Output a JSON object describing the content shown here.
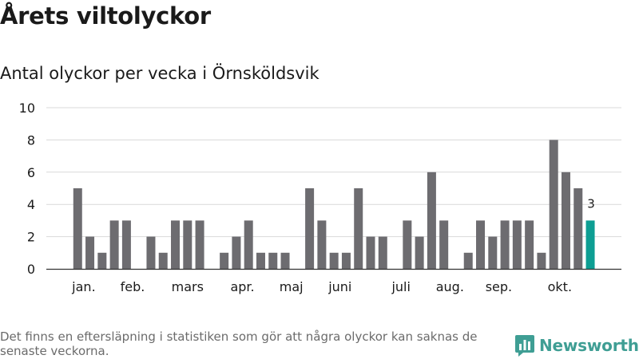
{
  "header": {
    "title": "Årets viltolyckor",
    "subtitle": "Antal olyckor per vecka i Örnsköldsvik"
  },
  "footer": {
    "note": "Det finns en eftersläpning i statistiken som gör att några olyckor kan saknas de senaste veckorna.",
    "brand": "Newsworthy",
    "brand_icon": "bar-chart-logo-icon"
  },
  "colors": {
    "bar": "#6d6c70",
    "highlight": "#0d9e93",
    "grid": "#d9d9d9",
    "axis": "#333333",
    "brand": "#3f9e94"
  },
  "chart_data": {
    "type": "bar",
    "title": "Antal olyckor per vecka i Örnsköldsvik",
    "xlabel": "",
    "ylabel": "",
    "ylim": [
      0,
      10
    ],
    "yticks": [
      0,
      2,
      4,
      6,
      8,
      10
    ],
    "grid": true,
    "x": [
      1,
      2,
      3,
      4,
      5,
      6,
      7,
      8,
      9,
      10,
      11,
      12,
      13,
      14,
      15,
      16,
      17,
      18,
      19,
      20,
      21,
      22,
      23,
      24,
      25,
      26,
      27,
      28,
      29,
      30,
      31,
      32,
      33,
      34,
      35,
      36,
      37,
      38,
      39,
      40,
      41,
      42,
      43,
      44
    ],
    "values": [
      0,
      5,
      2,
      1,
      3,
      3,
      0,
      2,
      1,
      3,
      3,
      3,
      0,
      1,
      2,
      3,
      1,
      1,
      1,
      0,
      5,
      3,
      1,
      1,
      5,
      2,
      2,
      0,
      3,
      2,
      6,
      3,
      0,
      1,
      3,
      2,
      3,
      3,
      3,
      1,
      8,
      6,
      5,
      3
    ],
    "highlight_index": 43,
    "data_labels": [
      {
        "index": 43,
        "text": "3"
      }
    ],
    "month_labels": [
      {
        "label": "jan.",
        "x": 2.5
      },
      {
        "label": "feb.",
        "x": 6.5
      },
      {
        "label": "mars",
        "x": 11
      },
      {
        "label": "apr.",
        "x": 15.5
      },
      {
        "label": "maj",
        "x": 19.5
      },
      {
        "label": "juni",
        "x": 23.5
      },
      {
        "label": "juli",
        "x": 28.5
      },
      {
        "label": "aug.",
        "x": 32.5
      },
      {
        "label": "sep.",
        "x": 36.5
      },
      {
        "label": "okt.",
        "x": 41.5
      }
    ]
  }
}
